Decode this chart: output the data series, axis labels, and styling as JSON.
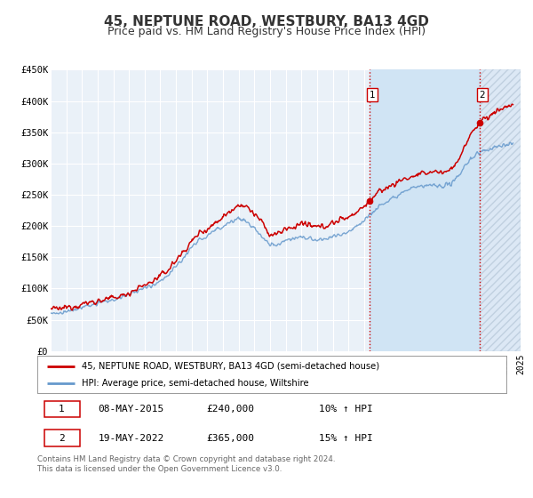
{
  "title": "45, NEPTUNE ROAD, WESTBURY, BA13 4GD",
  "subtitle": "Price paid vs. HM Land Registry's House Price Index (HPI)",
  "ylim": [
    0,
    450000
  ],
  "yticks": [
    0,
    50000,
    100000,
    150000,
    200000,
    250000,
    300000,
    350000,
    400000,
    450000
  ],
  "ytick_labels": [
    "£0",
    "£50K",
    "£100K",
    "£150K",
    "£200K",
    "£250K",
    "£300K",
    "£350K",
    "£400K",
    "£450K"
  ],
  "xlim_start": 1995,
  "xlim_end": 2025,
  "background_color": "#ffffff",
  "plot_bg_color": "#dce8f5",
  "plot_bg_color2": "#eaf1f8",
  "shade_color": "#c8ddf0",
  "grid_color": "#ffffff",
  "red_line_color": "#cc0000",
  "blue_line_color": "#6699cc",
  "marker1_x": 2015.36,
  "marker1_y": 240000,
  "marker2_x": 2022.38,
  "marker2_y": 365000,
  "vline1_x": 2015.36,
  "vline2_x": 2022.38,
  "legend_label_red": "45, NEPTUNE ROAD, WESTBURY, BA13 4GD (semi-detached house)",
  "legend_label_blue": "HPI: Average price, semi-detached house, Wiltshire",
  "table_row1": [
    "1",
    "08-MAY-2015",
    "£240,000",
    "10% ↑ HPI"
  ],
  "table_row2": [
    "2",
    "19-MAY-2022",
    "£365,000",
    "15% ↑ HPI"
  ],
  "footer_text": "Contains HM Land Registry data © Crown copyright and database right 2024.\nThis data is licensed under the Open Government Licence v3.0.",
  "title_fontsize": 11,
  "subtitle_fontsize": 9
}
